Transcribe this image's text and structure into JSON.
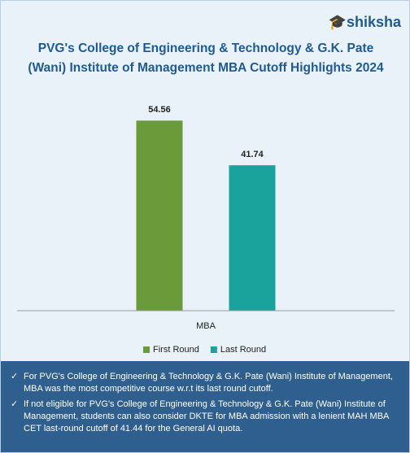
{
  "chart_data": {
    "type": "bar",
    "title": "PVG's College of Engineering & Technology & G.K. Pate (Wani) Institute of Management MBA Cutoff Highlights 2024",
    "logo": "shiksha",
    "categories": [
      "MBA"
    ],
    "series": [
      {
        "name": "First Round",
        "color": "#6b9a3a",
        "values": [
          54.56
        ]
      },
      {
        "name": "Last Round",
        "color": "#19a39c",
        "values": [
          41.74
        ]
      }
    ],
    "ylim": [
      0,
      60
    ],
    "legend": "bottom",
    "notes": [
      "For PVG's College of Engineering & Technology & G.K. Pate (Wani) Institute of Management, MBA was the most competitive course w.r.t its last round cutoff.",
      "If not eligible for PVG's College of Engineering & Technology & G.K. Pate (Wani) Institute of Management, students can also consider DKTE for MBA admission with a lenient MAH MBA CET last-round cutoff of 41.44 for the General AI quota."
    ]
  }
}
